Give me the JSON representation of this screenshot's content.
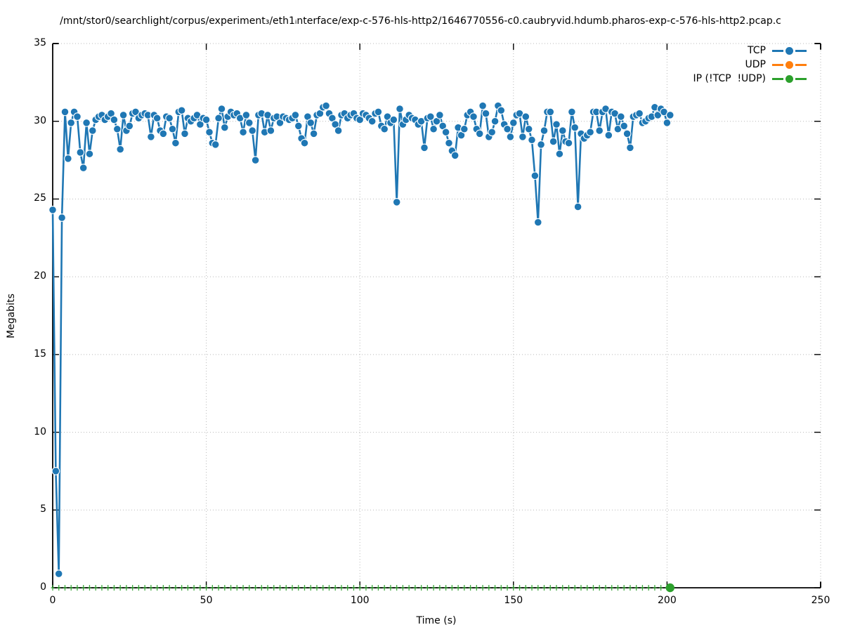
{
  "chart_data": {
    "type": "line",
    "title": "/mnt/stor0/searchlight/corpus/experiment₃/eth1ᵢnterface/exp-c-576-hls-http2/1646770556-c0.caubryvid.hdumb.pharos-exp-c-576-hls-http2.pcap.c",
    "xlabel": "Time (s)",
    "ylabel": "Megabits",
    "xlim": [
      0,
      250
    ],
    "ylim": [
      0,
      35
    ],
    "x_ticks": [
      0,
      50,
      100,
      150,
      200,
      250
    ],
    "y_ticks": [
      0,
      5,
      10,
      15,
      20,
      25,
      30,
      35
    ],
    "grid": "dotted",
    "grid_color": "#b8b8b8",
    "axis_color": "#000000",
    "legend_position": "top-right-inside",
    "legend_sample": "dash-dot-dash",
    "series": [
      {
        "name": "TCP",
        "color": "#1f77b4",
        "marker": "filled-circle",
        "x_start": 0,
        "x_step": 1,
        "values": [
          24.3,
          7.5,
          0.9,
          23.8,
          30.6,
          27.6,
          29.9,
          30.6,
          30.3,
          28.0,
          27.0,
          29.9,
          27.9,
          29.4,
          30.1,
          30.3,
          30.4,
          30.1,
          30.3,
          30.5,
          30.1,
          29.5,
          28.2,
          30.4,
          29.4,
          29.7,
          30.5,
          30.6,
          30.2,
          30.4,
          30.5,
          30.4,
          29.0,
          30.4,
          30.2,
          29.4,
          29.2,
          30.3,
          30.2,
          29.5,
          28.6,
          30.6,
          30.7,
          29.2,
          30.2,
          30.0,
          30.2,
          30.4,
          29.8,
          30.2,
          30.1,
          29.3,
          28.6,
          28.5,
          30.2,
          30.8,
          29.6,
          30.3,
          30.6,
          30.4,
          30.5,
          30.2,
          29.3,
          30.4,
          29.9,
          29.4,
          27.5,
          30.4,
          30.5,
          29.3,
          30.4,
          29.4,
          30.2,
          30.3,
          29.9,
          30.3,
          30.2,
          30.1,
          30.2,
          30.4,
          29.7,
          28.9,
          28.6,
          30.3,
          29.9,
          29.2,
          30.4,
          30.5,
          30.9,
          31.0,
          30.5,
          30.2,
          29.8,
          29.4,
          30.4,
          30.5,
          30.2,
          30.4,
          30.5,
          30.2,
          30.1,
          30.5,
          30.4,
          30.2,
          30.0,
          30.5,
          30.6,
          29.7,
          29.5,
          30.3,
          29.9,
          30.1,
          24.8,
          30.8,
          29.8,
          30.1,
          30.4,
          30.2,
          30.1,
          29.8,
          30.0,
          28.3,
          30.2,
          30.3,
          29.5,
          30.0,
          30.4,
          29.7,
          29.3,
          28.6,
          28.1,
          27.8,
          29.6,
          29.1,
          29.5,
          30.4,
          30.6,
          30.3,
          29.5,
          29.2,
          31.0,
          30.5,
          29.0,
          29.3,
          30.0,
          31.0,
          30.7,
          29.8,
          29.5,
          29.0,
          29.9,
          30.4,
          30.5,
          29.0,
          30.3,
          29.5,
          28.8,
          26.5,
          23.5,
          28.5,
          29.4,
          30.6,
          30.6,
          28.7,
          29.8,
          27.9,
          29.4,
          28.7,
          28.6,
          30.6,
          29.6,
          24.5,
          29.2,
          28.9,
          29.1,
          29.3,
          30.6,
          30.6,
          29.4,
          30.6,
          30.8,
          29.1,
          30.6,
          30.5,
          29.5,
          30.3,
          29.7,
          29.2,
          28.3,
          30.3,
          30.4,
          30.5,
          29.9,
          30.0,
          30.2,
          30.3,
          30.9,
          30.4,
          30.8,
          30.6,
          29.9,
          30.4
        ]
      },
      {
        "name": "UDP",
        "color": "#ff7f0e",
        "marker": "filled-circle",
        "values": []
      },
      {
        "name": "IP (!TCP  !UDP)",
        "color": "#2ca02c",
        "marker": "filled-circle",
        "y_constant": 0,
        "x": [
          0,
          2,
          4,
          6,
          8,
          10,
          12,
          14,
          16,
          18,
          20,
          22,
          24,
          26,
          28,
          30,
          32,
          34,
          36,
          38,
          40,
          42,
          44,
          46,
          48,
          50,
          52,
          54,
          56,
          58,
          60,
          62,
          64,
          66,
          68,
          70,
          72,
          74,
          76,
          78,
          80,
          82,
          84,
          86,
          88,
          90,
          92,
          94,
          96,
          98,
          100,
          102,
          104,
          106,
          108,
          110,
          112,
          114,
          116,
          118,
          120,
          122,
          124,
          126,
          128,
          130,
          132,
          134,
          136,
          138,
          140,
          142,
          144,
          146,
          148,
          150,
          152,
          154,
          156,
          158,
          160,
          162,
          164,
          166,
          168,
          170,
          172,
          174,
          176,
          178,
          180,
          182,
          184,
          186,
          188,
          190,
          192,
          194,
          196,
          198,
          200,
          201
        ],
        "endpoint_marker": {
          "x": 201,
          "y": 0
        }
      }
    ]
  }
}
